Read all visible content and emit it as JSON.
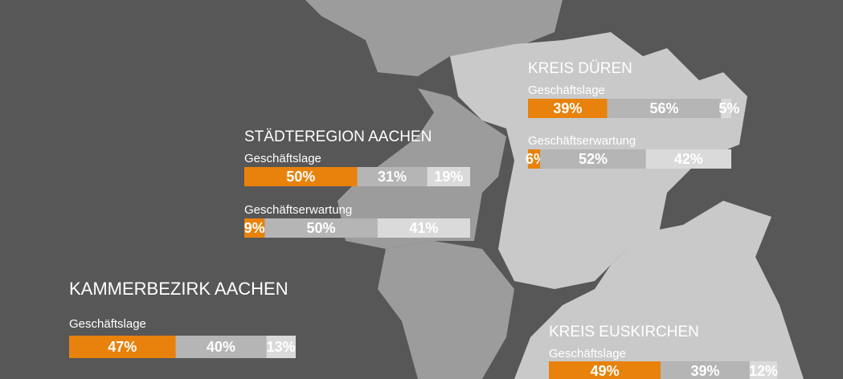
{
  "regions": [
    {
      "title": "KREIS DÜREN",
      "bars": [
        {
          "label": "Geschäftslage",
          "values": [
            39,
            56,
            5
          ],
          "value_labels": [
            "39%",
            "56%",
            "5%"
          ]
        },
        {
          "label": "Geschäftserwartung",
          "values": [
            6,
            52,
            42
          ],
          "value_labels": [
            "6%",
            "52%",
            "42%"
          ]
        }
      ]
    },
    {
      "title": "STÄDTEREGION AACHEN",
      "bars": [
        {
          "label": "Geschäftslage",
          "values": [
            50,
            31,
            19
          ],
          "value_labels": [
            "50%",
            "31%",
            "19%"
          ]
        },
        {
          "label": "Geschäftserwartung",
          "values": [
            9,
            50,
            41
          ],
          "value_labels": [
            "9%",
            "50%",
            "41%"
          ]
        }
      ]
    },
    {
      "title": "KAMMERBEZIRK AACHEN",
      "bars": [
        {
          "label": "Geschäftslage",
          "values": [
            47,
            40,
            13
          ],
          "value_labels": [
            "47%",
            "40%",
            "13%"
          ]
        }
      ]
    },
    {
      "title": "KREIS EUSKIRCHEN",
      "bars": [
        {
          "label": "Geschäftslage",
          "values": [
            49,
            39,
            12
          ],
          "value_labels": [
            "49%",
            "39%",
            "12%"
          ]
        }
      ]
    }
  ]
}
